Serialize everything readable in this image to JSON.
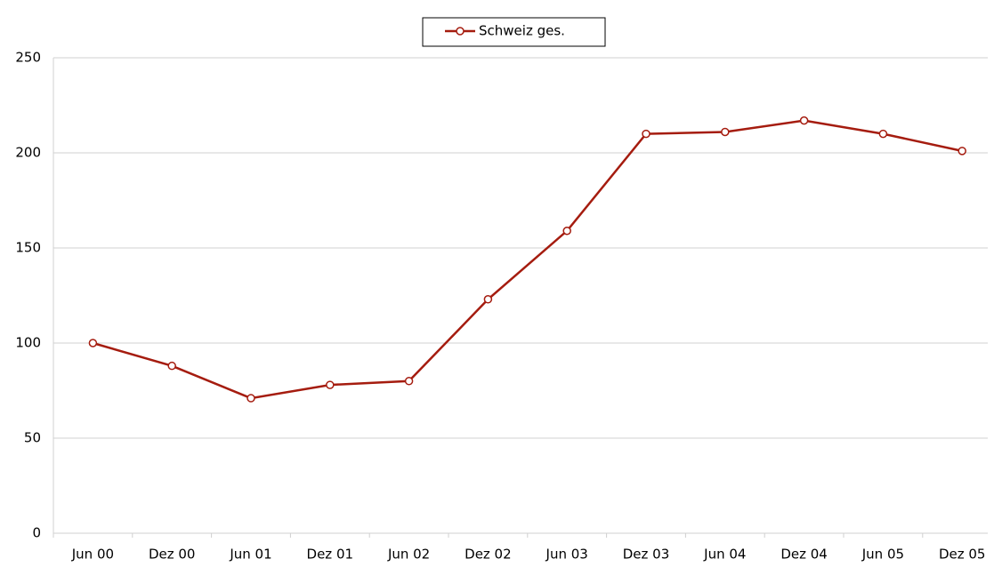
{
  "chart_data": {
    "type": "line",
    "categories": [
      "Jun 00",
      "Dez 00",
      "Jun 01",
      "Dez 01",
      "Jun 02",
      "Dez 02",
      "Jun 03",
      "Dez 03",
      "Jun 04",
      "Dez 04",
      "Jun 05",
      "Dez 05"
    ],
    "series": [
      {
        "name": "Schweiz ges.",
        "color": "#a51c0f",
        "values": [
          100,
          88,
          71,
          78,
          80,
          123,
          159,
          210,
          211,
          217,
          210,
          201
        ]
      }
    ],
    "ylim": [
      0,
      250
    ],
    "yticks": [
      0,
      50,
      100,
      150,
      200,
      250
    ],
    "grid": true,
    "legend": "top"
  }
}
